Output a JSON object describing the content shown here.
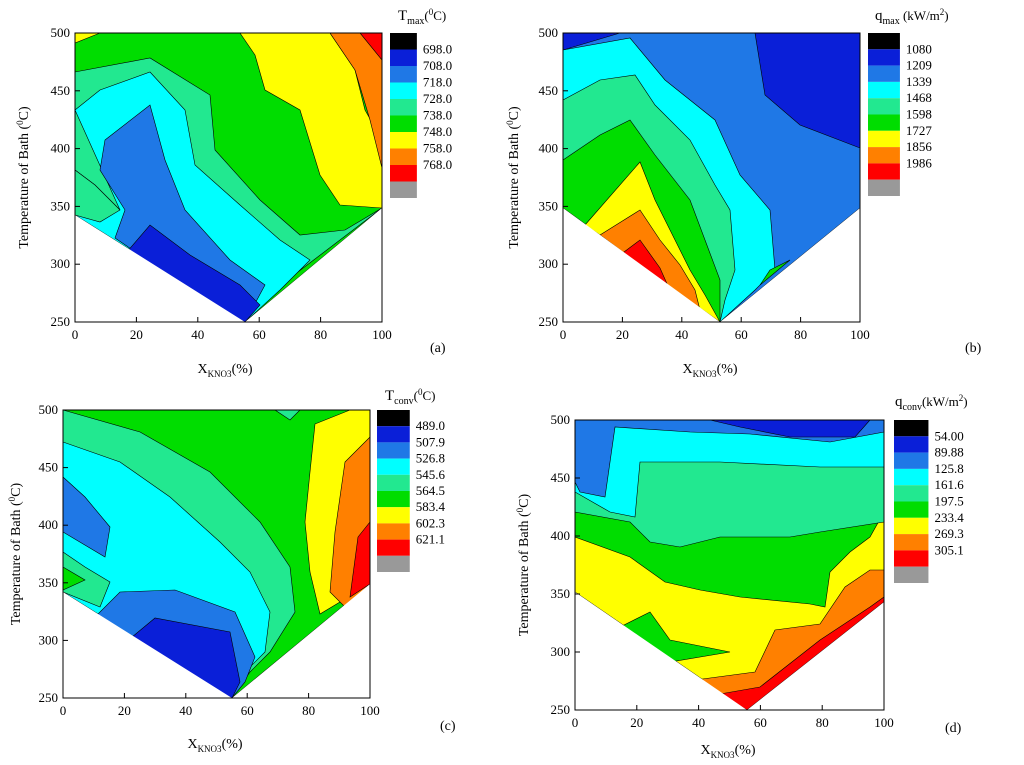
{
  "chart_data": [
    {
      "type": "contour",
      "panel_label": "(a)",
      "xlabel_main": "X",
      "xlabel_sub": "KNO3",
      "xlabel_tail": "(%)",
      "ylabel_main": "Temperature of Bath (",
      "ylabel_sup": "0",
      "ylabel_tail": "C)",
      "x_ticks": [
        "0",
        "20",
        "40",
        "60",
        "80",
        "100"
      ],
      "y_ticks": [
        "250",
        "300",
        "350",
        "400",
        "450",
        "500"
      ],
      "xlim": [
        0,
        100
      ],
      "ylim": [
        250,
        500
      ],
      "legend_title": {
        "main": "T",
        "sub": "max",
        "tail": "(",
        "sup": "0",
        "end": "C)"
      },
      "legend_levels": [
        "698.0",
        "708.0",
        "718.0",
        "728.0",
        "738.0",
        "748.0",
        "758.0",
        "768.0"
      ],
      "legend_colors": [
        "#000000",
        "#0a1fd8",
        "#1f78e6",
        "#00ffff",
        "#22e890",
        "#00dd00",
        "#ffff00",
        "#ff8000",
        "#ff0000",
        "#999999"
      ]
    },
    {
      "type": "contour",
      "panel_label": "(b)",
      "xlabel_main": "X",
      "xlabel_sub": "KNO3",
      "xlabel_tail": "(%)",
      "ylabel_main": "Temperature of Bath (",
      "ylabel_sup": "0",
      "ylabel_tail": "C)",
      "x_ticks": [
        "0",
        "20",
        "40",
        "60",
        "80",
        "100"
      ],
      "y_ticks": [
        "250",
        "300",
        "350",
        "400",
        "450",
        "500"
      ],
      "xlim": [
        0,
        100
      ],
      "ylim": [
        250,
        500
      ],
      "legend_title": {
        "main": "q",
        "sub": "max",
        "tail": " (kW/m",
        "sup": "2",
        "end": ")"
      },
      "legend_levels": [
        "1080",
        "1209",
        "1339",
        "1468",
        "1598",
        "1727",
        "1856",
        "1986"
      ],
      "legend_colors": [
        "#000000",
        "#0a1fd8",
        "#1f78e6",
        "#00ffff",
        "#22e890",
        "#00dd00",
        "#ffff00",
        "#ff8000",
        "#ff0000",
        "#999999"
      ]
    },
    {
      "type": "contour",
      "panel_label": "(c)",
      "xlabel_main": "X",
      "xlabel_sub": "KNO3",
      "xlabel_tail": "(%)",
      "ylabel_main": "Temperature of Bath (",
      "ylabel_sup": "0",
      "ylabel_tail": "C)",
      "x_ticks": [
        "0",
        "20",
        "40",
        "60",
        "80",
        "100"
      ],
      "y_ticks": [
        "250",
        "300",
        "350",
        "400",
        "450",
        "500"
      ],
      "xlim": [
        0,
        100
      ],
      "ylim": [
        250,
        500
      ],
      "legend_title": {
        "main": "T",
        "sub": "conv",
        "tail": "(",
        "sup": "0",
        "end": "C)"
      },
      "legend_levels": [
        "489.0",
        "507.9",
        "526.8",
        "545.6",
        "564.5",
        "583.4",
        "602.3",
        "621.1"
      ],
      "legend_colors": [
        "#000000",
        "#0a1fd8",
        "#1f78e6",
        "#00ffff",
        "#22e890",
        "#00dd00",
        "#ffff00",
        "#ff8000",
        "#ff0000",
        "#999999"
      ]
    },
    {
      "type": "contour",
      "panel_label": "(d)",
      "xlabel_main": "X",
      "xlabel_sub": "KNO3",
      "xlabel_tail": "(%)",
      "ylabel_main": "Temperature of Bath (",
      "ylabel_sup": "0",
      "ylabel_tail": "C)",
      "x_ticks": [
        "0",
        "20",
        "40",
        "60",
        "80",
        "100"
      ],
      "y_ticks": [
        "250",
        "300",
        "350",
        "400",
        "450",
        "500"
      ],
      "xlim": [
        0,
        100
      ],
      "ylim": [
        250,
        500
      ],
      "legend_title": {
        "main": "q",
        "sub": "conv",
        "tail": "(kW/m",
        "sup": "2",
        "end": ")"
      },
      "legend_levels": [
        "54.00",
        "89.88",
        "125.8",
        "161.6",
        "197.5",
        "233.4",
        "269.3",
        "305.1"
      ],
      "legend_colors": [
        "#000000",
        "#0a1fd8",
        "#1f78e6",
        "#00ffff",
        "#22e890",
        "#00dd00",
        "#ffff00",
        "#ff8000",
        "#ff0000",
        "#999999"
      ]
    }
  ]
}
